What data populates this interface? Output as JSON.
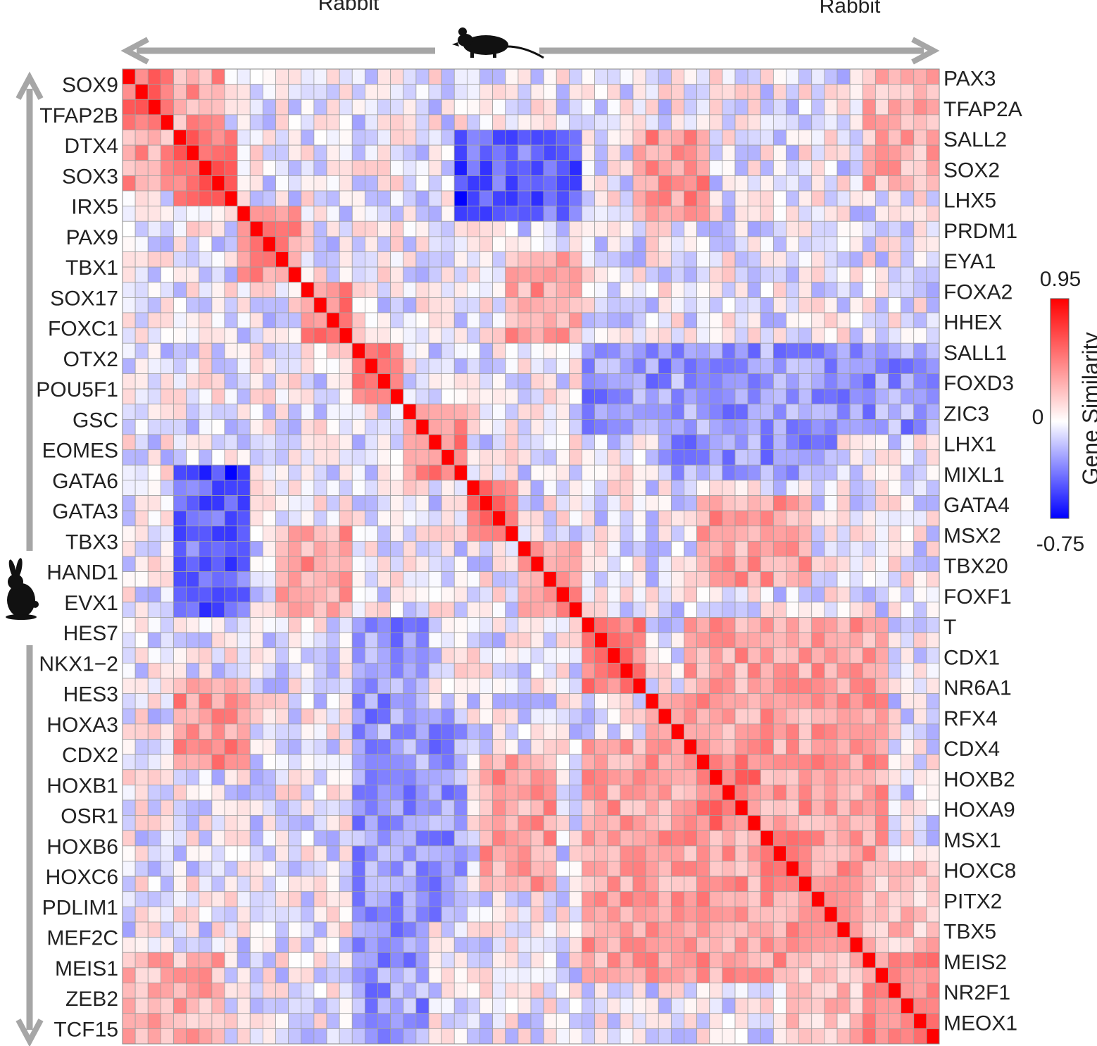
{
  "chart_data": {
    "type": "heatmap",
    "top_labels": {
      "left": "Rabbit",
      "right": "Rabbit"
    },
    "top_icon": "mouse-icon",
    "left_icon": "rabbit-icon",
    "row_labels": [
      "SOX9",
      "TFAP2B",
      "DTX4",
      "SOX3",
      "IRX5",
      "PAX9",
      "TBX1",
      "SOX17",
      "FOXC1",
      "OTX2",
      "POU5F1",
      "GSC",
      "EOMES",
      "GATA6",
      "GATA3",
      "TBX3",
      "HAND1",
      "EVX1",
      "HES7",
      "NKX1−2",
      "HES3",
      "HOXA3",
      "CDX2",
      "HOXB1",
      "OSR1",
      "HOXB6",
      "HOXC6",
      "PDLIM1",
      "MEF2C",
      "MEIS1",
      "ZEB2",
      "TCF15"
    ],
    "col_labels": [
      "PAX3",
      "TFAP2A",
      "SALL2",
      "SOX2",
      "LHX5",
      "PRDM1",
      "EYA1",
      "FOXA2",
      "HHEX",
      "SALL1",
      "FOXD3",
      "ZIC3",
      "LHX1",
      "MIXL1",
      "GATA4",
      "MSX2",
      "TBX20",
      "FOXF1",
      "T",
      "CDX1",
      "NR6A1",
      "RFX4",
      "CDX4",
      "HOXB2",
      "HOXA9",
      "MSX1",
      "HOXC8",
      "PITX2",
      "TBX5",
      "MEIS2",
      "NR2F1",
      "MEOX1"
    ],
    "grid_size": 64,
    "blocks": [
      {
        "start": 0,
        "end": 4,
        "intra": 0.5
      },
      {
        "start": 4,
        "end": 9,
        "intra": 0.55
      },
      {
        "start": 9,
        "end": 14,
        "intra": 0.4
      },
      {
        "start": 14,
        "end": 18,
        "intra": 0.45
      },
      {
        "start": 18,
        "end": 22,
        "intra": 0.45
      },
      {
        "start": 22,
        "end": 27,
        "intra": 0.45
      },
      {
        "start": 27,
        "end": 31,
        "intra": 0.5
      },
      {
        "start": 31,
        "end": 36,
        "intra": 0.35
      },
      {
        "start": 36,
        "end": 41,
        "intra": 0.5
      },
      {
        "start": 41,
        "end": 45,
        "intra": 0.4
      },
      {
        "start": 45,
        "end": 50,
        "intra": 0.5
      },
      {
        "start": 50,
        "end": 54,
        "intra": 0.55
      },
      {
        "start": 54,
        "end": 58,
        "intra": 0.45
      },
      {
        "start": 58,
        "end": 64,
        "intra": 0.45
      }
    ],
    "off_diagonal": [
      {
        "rows": [
          0,
          8
        ],
        "cols": [
          0,
          8
        ],
        "value": 0.35
      },
      {
        "rows": [
          0,
          8
        ],
        "cols": [
          58,
          64
        ],
        "value": 0.3
      },
      {
        "rows": [
          26,
          34
        ],
        "cols": [
          4,
          10
        ],
        "value": -0.6
      },
      {
        "rows": [
          28,
          34
        ],
        "cols": [
          45,
          54
        ],
        "value": 0.35
      },
      {
        "rows": [
          30,
          36
        ],
        "cols": [
          12,
          18
        ],
        "value": 0.35
      },
      {
        "rows": [
          40,
          46
        ],
        "cols": [
          4,
          10
        ],
        "value": 0.4
      },
      {
        "rows": [
          42,
          56
        ],
        "cols": [
          18,
          27
        ],
        "value": -0.3
      },
      {
        "rows": [
          44,
          60
        ],
        "cols": [
          36,
          58
        ],
        "value": 0.35
      },
      {
        "rows": [
          52,
          60
        ],
        "cols": [
          58,
          64
        ],
        "value": 0.2
      },
      {
        "rows": [
          18,
          24
        ],
        "cols": [
          36,
          64
        ],
        "value": -0.3
      },
      {
        "rows": [
          4,
          10
        ],
        "cols": [
          27,
          36
        ],
        "value": -0.45
      }
    ],
    "random_seed": 7,
    "noise": 0.18,
    "colorscale": {
      "min": -0.75,
      "max": 0.95,
      "mid": 0,
      "low_color": "#0000ff",
      "mid_color": "#ffffff",
      "high_color": "#ff0000"
    },
    "colorbar": {
      "title": "Gene Similarity",
      "max_label": "0.95",
      "mid_label": "0",
      "min_label": "-0.75"
    },
    "grid": true,
    "grid_color": "#a0a0a0"
  }
}
